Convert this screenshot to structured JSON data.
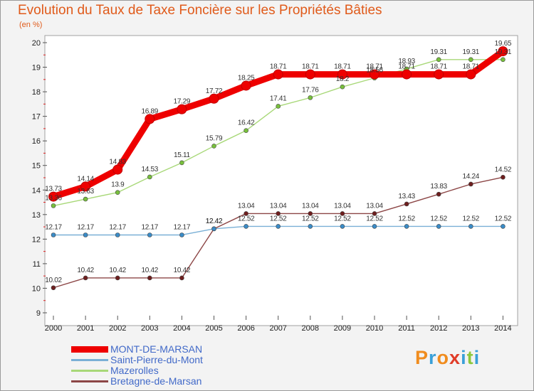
{
  "title": "Evolution du Taux de Taxe Foncière sur les Propriétés Bâties",
  "unit": "(en %)",
  "logo": [
    "P",
    "r",
    "o",
    "x",
    "i",
    "t",
    "i"
  ],
  "logo_colors": [
    "#f08c1e",
    "#3aa0d8",
    "#f08c1e",
    "#e03c28",
    "#3aa0d8",
    "#8cc83c",
    "#3aa0d8"
  ],
  "chart_data": {
    "type": "line",
    "title": "Evolution du Taux de Taxe Foncière sur les Propriétés Bâties",
    "ylabel": "(en %)",
    "xlabel": "",
    "ylim": [
      9,
      20
    ],
    "yticks": [
      9,
      10,
      11,
      12,
      13,
      14,
      15,
      16,
      17,
      18,
      19,
      20
    ],
    "categories": [
      "2000",
      "2001",
      "2002",
      "2003",
      "2004",
      "2005",
      "2006",
      "2007",
      "2008",
      "2009",
      "2010",
      "2011",
      "2012",
      "2013",
      "2014"
    ],
    "grid": false,
    "legend_position": "bottom-left",
    "series": [
      {
        "name": "MONT-DE-MARSAN",
        "color": "#ee0000",
        "marker_color": "#ee0000",
        "emphasis": "thick",
        "values": [
          13.73,
          14.14,
          14.83,
          16.89,
          17.29,
          17.72,
          18.25,
          18.71,
          18.71,
          18.71,
          18.71,
          18.71,
          18.71,
          18.71,
          19.65
        ],
        "labels": [
          "13.73",
          "14.14",
          "14.83",
          "16.89",
          "17.29",
          "17.72",
          "18.25",
          "18.71",
          "18.71",
          "18.71",
          "18.71",
          "18.71",
          "18.71",
          "18.71",
          "19.65"
        ]
      },
      {
        "name": "Saint-Pierre-du-Mont",
        "color": "#7ab0d6",
        "marker_color": "#3a8cc8",
        "emphasis": "normal",
        "values": [
          12.17,
          12.17,
          12.17,
          12.17,
          12.17,
          12.42,
          12.52,
          12.52,
          12.52,
          12.52,
          12.52,
          12.52,
          12.52,
          12.52,
          12.52
        ],
        "labels": [
          "12.17",
          "12.17",
          "12.17",
          "12.17",
          "12.17",
          "12.42",
          "12.52",
          "12.52",
          "12.52",
          "12.52",
          "12.52",
          "12.52",
          "12.52",
          "12.52",
          "12.52"
        ]
      },
      {
        "name": "Mazerolles",
        "color": "#a8d878",
        "marker_color": "#78c03c",
        "emphasis": "normal",
        "values": [
          13.36,
          13.63,
          13.9,
          14.53,
          15.11,
          15.79,
          16.42,
          17.41,
          17.76,
          18.2,
          18.56,
          18.93,
          19.31,
          19.31,
          19.31
        ],
        "labels": [
          "13.36",
          "13.63",
          "13.9",
          "14.53",
          "15.11",
          "15.79",
          "16.42",
          "17.41",
          "17.76",
          "18.2",
          "18.56",
          "18.93",
          "19.31",
          "19.31",
          "19.31"
        ]
      },
      {
        "name": "Bretagne-de-Marsan",
        "color": "#8c4646",
        "marker_color": "#6e1e1e",
        "emphasis": "normal",
        "values": [
          10.02,
          10.42,
          10.42,
          10.42,
          10.42,
          12.42,
          13.04,
          13.04,
          13.04,
          13.04,
          13.04,
          13.43,
          13.83,
          14.24,
          14.52
        ],
        "labels": [
          "10.02",
          "10.42",
          "10.42",
          "10.42",
          "10.42",
          "12.42",
          "13.04",
          "13.04",
          "13.04",
          "13.04",
          "13.04",
          "13.43",
          "13.83",
          "14.24",
          "14.52"
        ]
      }
    ]
  }
}
